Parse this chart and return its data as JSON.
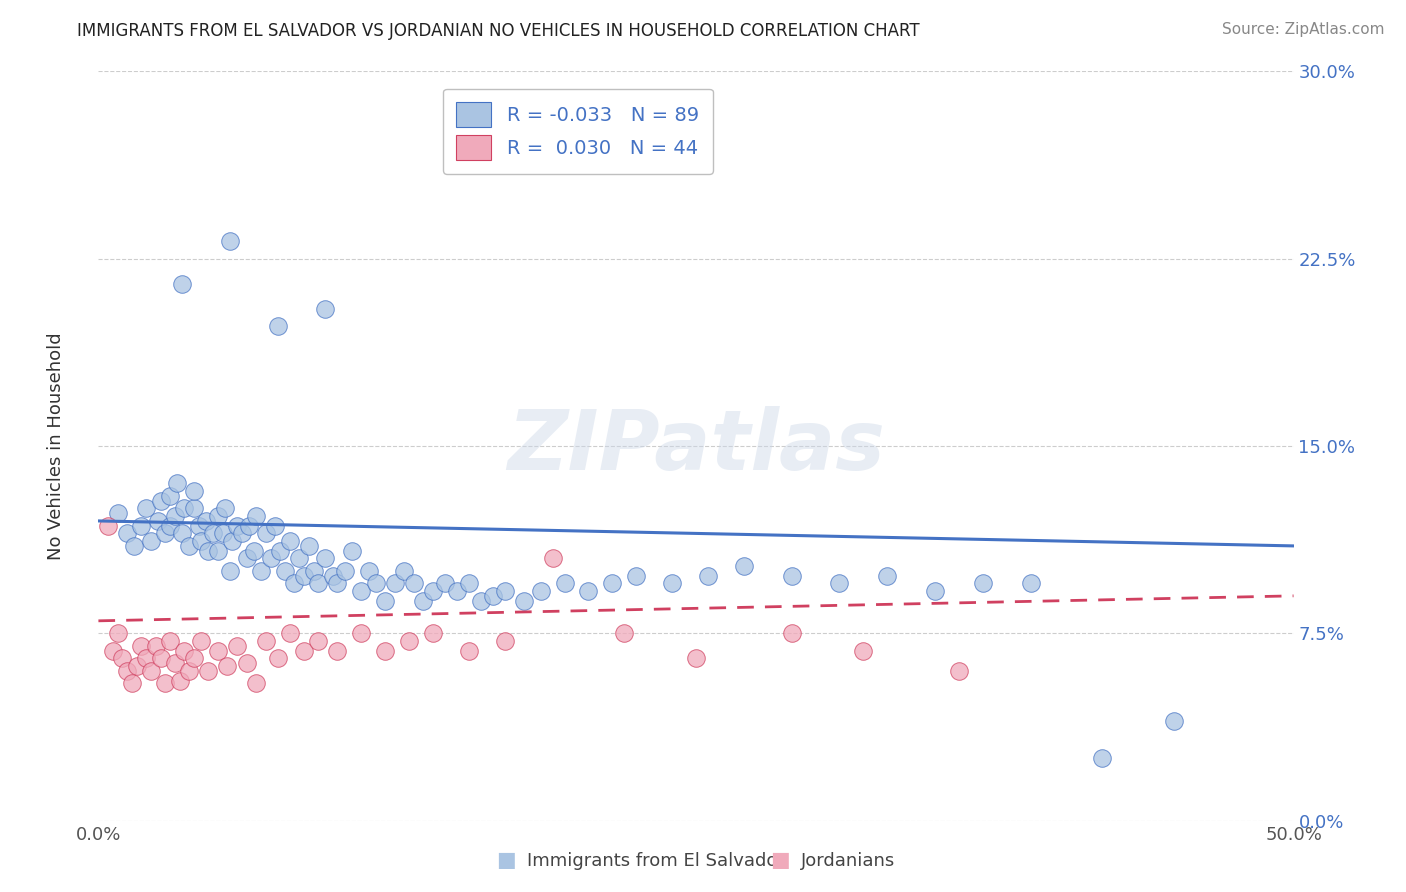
{
  "title": "IMMIGRANTS FROM EL SALVADOR VS JORDANIAN NO VEHICLES IN HOUSEHOLD CORRELATION CHART",
  "source": "Source: ZipAtlas.com",
  "ylabel": "No Vehicles in Household",
  "legend_labels": [
    "Immigrants from El Salvador",
    "Jordanians"
  ],
  "blue_R": -0.033,
  "blue_N": 89,
  "pink_R": 0.03,
  "pink_N": 44,
  "xlim": [
    0.0,
    0.5
  ],
  "ylim": [
    0.0,
    0.3
  ],
  "xticks": [
    0.0,
    0.05,
    0.1,
    0.15,
    0.2,
    0.25,
    0.3,
    0.35,
    0.4,
    0.45,
    0.5
  ],
  "yticks": [
    0.0,
    0.075,
    0.15,
    0.225,
    0.3
  ],
  "ytick_labels": [
    "0.0%",
    "7.5%",
    "15.0%",
    "22.5%",
    "30.0%"
  ],
  "xtick_labels": [
    "0.0%",
    "",
    "",
    "",
    "",
    "",
    "",
    "",
    "",
    "",
    "50.0%"
  ],
  "blue_color": "#aac4e2",
  "pink_color": "#f0aabb",
  "blue_line_color": "#4472c4",
  "pink_line_color": "#d04060",
  "watermark": "ZIPatlas",
  "blue_scatter_x": [
    0.008,
    0.012,
    0.015,
    0.018,
    0.02,
    0.022,
    0.025,
    0.026,
    0.028,
    0.03,
    0.03,
    0.032,
    0.033,
    0.035,
    0.036,
    0.038,
    0.04,
    0.04,
    0.042,
    0.043,
    0.045,
    0.046,
    0.048,
    0.05,
    0.05,
    0.052,
    0.053,
    0.055,
    0.056,
    0.058,
    0.06,
    0.062,
    0.063,
    0.065,
    0.066,
    0.068,
    0.07,
    0.072,
    0.074,
    0.076,
    0.078,
    0.08,
    0.082,
    0.084,
    0.086,
    0.088,
    0.09,
    0.092,
    0.095,
    0.098,
    0.1,
    0.103,
    0.106,
    0.11,
    0.113,
    0.116,
    0.12,
    0.124,
    0.128,
    0.132,
    0.136,
    0.14,
    0.145,
    0.15,
    0.155,
    0.16,
    0.165,
    0.17,
    0.178,
    0.185,
    0.195,
    0.205,
    0.215,
    0.225,
    0.24,
    0.255,
    0.27,
    0.29,
    0.31,
    0.33,
    0.35,
    0.37,
    0.39,
    0.42,
    0.45,
    0.035,
    0.055,
    0.075,
    0.095
  ],
  "blue_scatter_y": [
    0.123,
    0.115,
    0.11,
    0.118,
    0.125,
    0.112,
    0.12,
    0.128,
    0.115,
    0.13,
    0.118,
    0.122,
    0.135,
    0.115,
    0.125,
    0.11,
    0.125,
    0.132,
    0.118,
    0.112,
    0.12,
    0.108,
    0.115,
    0.122,
    0.108,
    0.115,
    0.125,
    0.1,
    0.112,
    0.118,
    0.115,
    0.105,
    0.118,
    0.108,
    0.122,
    0.1,
    0.115,
    0.105,
    0.118,
    0.108,
    0.1,
    0.112,
    0.095,
    0.105,
    0.098,
    0.11,
    0.1,
    0.095,
    0.105,
    0.098,
    0.095,
    0.1,
    0.108,
    0.092,
    0.1,
    0.095,
    0.088,
    0.095,
    0.1,
    0.095,
    0.088,
    0.092,
    0.095,
    0.092,
    0.095,
    0.088,
    0.09,
    0.092,
    0.088,
    0.092,
    0.095,
    0.092,
    0.095,
    0.098,
    0.095,
    0.098,
    0.102,
    0.098,
    0.095,
    0.098,
    0.092,
    0.095,
    0.095,
    0.025,
    0.04,
    0.215,
    0.232,
    0.198,
    0.205
  ],
  "pink_scatter_x": [
    0.004,
    0.006,
    0.008,
    0.01,
    0.012,
    0.014,
    0.016,
    0.018,
    0.02,
    0.022,
    0.024,
    0.026,
    0.028,
    0.03,
    0.032,
    0.034,
    0.036,
    0.038,
    0.04,
    0.043,
    0.046,
    0.05,
    0.054,
    0.058,
    0.062,
    0.066,
    0.07,
    0.075,
    0.08,
    0.086,
    0.092,
    0.1,
    0.11,
    0.12,
    0.13,
    0.14,
    0.155,
    0.17,
    0.19,
    0.22,
    0.25,
    0.29,
    0.32,
    0.36
  ],
  "pink_scatter_y": [
    0.118,
    0.068,
    0.075,
    0.065,
    0.06,
    0.055,
    0.062,
    0.07,
    0.065,
    0.06,
    0.07,
    0.065,
    0.055,
    0.072,
    0.063,
    0.056,
    0.068,
    0.06,
    0.065,
    0.072,
    0.06,
    0.068,
    0.062,
    0.07,
    0.063,
    0.055,
    0.072,
    0.065,
    0.075,
    0.068,
    0.072,
    0.068,
    0.075,
    0.068,
    0.072,
    0.075,
    0.068,
    0.072,
    0.105,
    0.075,
    0.065,
    0.075,
    0.068,
    0.06
  ]
}
